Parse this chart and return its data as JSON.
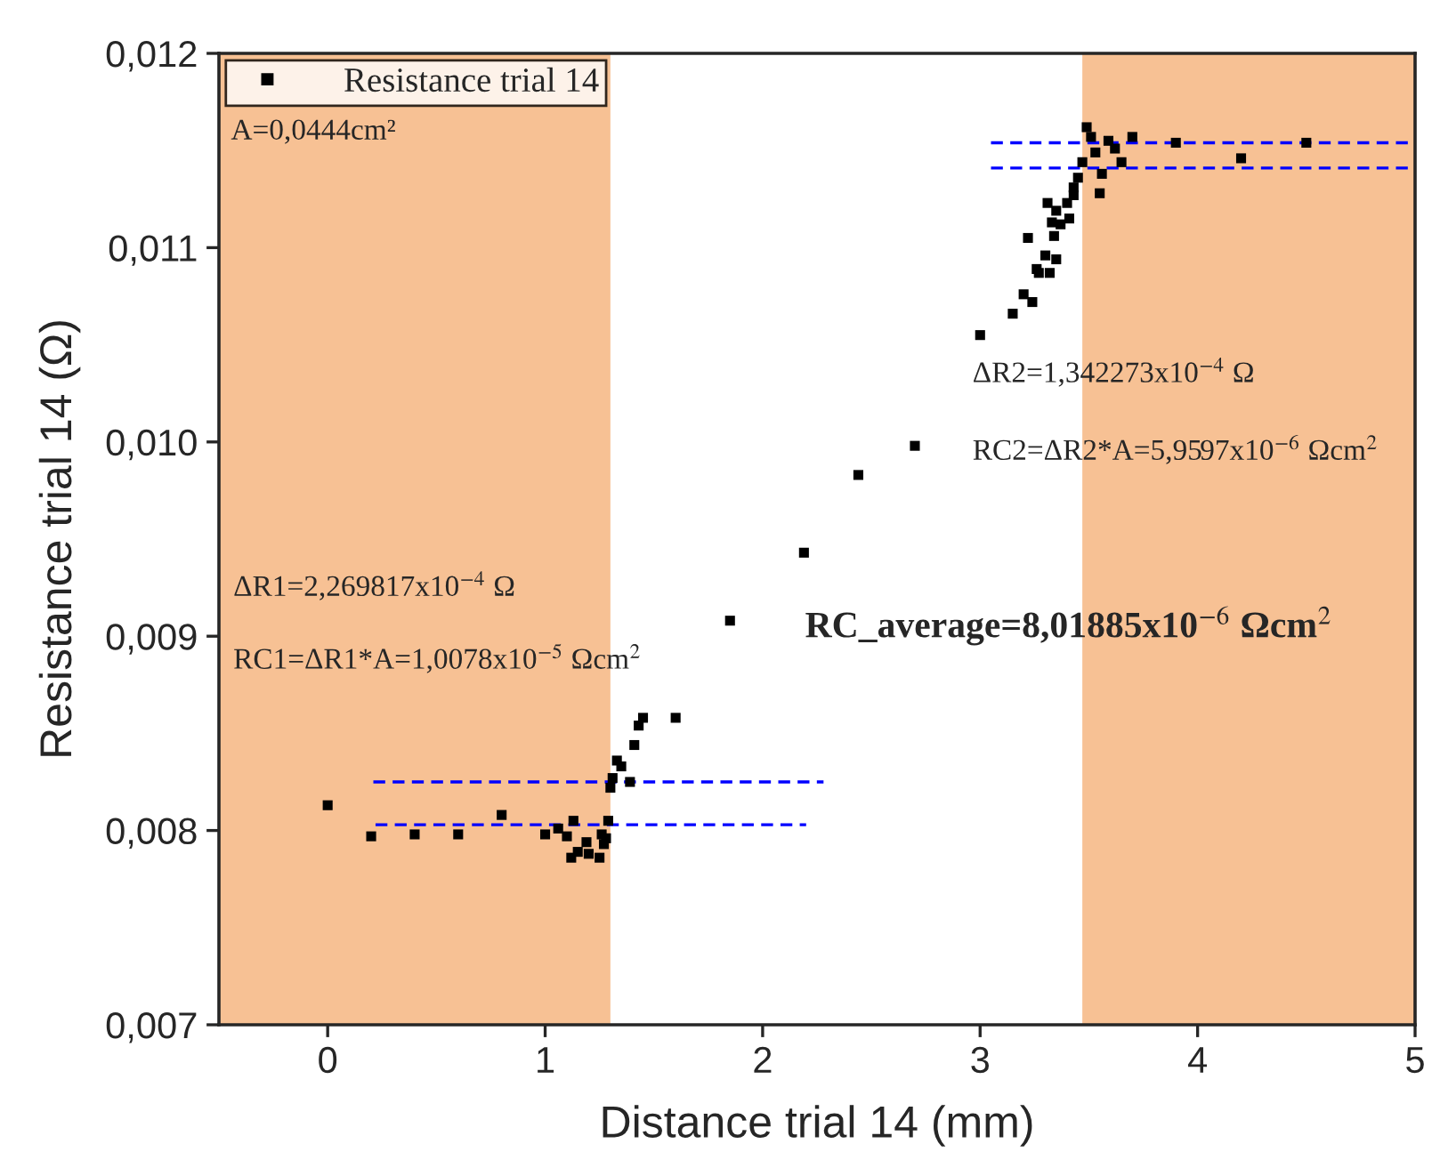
{
  "chart_data": {
    "type": "scatter",
    "xlabel": "Distance trial 14 (mm)",
    "ylabel": "Resistance trial 14 (Ω)",
    "xlim": [
      -0.5,
      5
    ],
    "xticks": [
      0,
      1,
      2,
      3,
      4,
      5
    ],
    "ylim": [
      0.007,
      0.012
    ],
    "yticks": [
      {
        "value": 0.007,
        "label": "0,007"
      },
      {
        "value": 0.008,
        "label": "0,008"
      },
      {
        "value": 0.009,
        "label": "0,009"
      },
      {
        "value": 0.01,
        "label": "0,010"
      },
      {
        "value": 0.011,
        "label": "0,011"
      },
      {
        "value": 0.012,
        "label": "0,012"
      }
    ],
    "grid": false,
    "legend": "top left",
    "series": [
      {
        "name": "Resistance trial 14",
        "marker": "square",
        "color": "#000000",
        "x": [
          0,
          0.2,
          0.4,
          0.6,
          0.8,
          1.0,
          1.06,
          1.13,
          1.1,
          1.19,
          1.15,
          1.12,
          1.2,
          1.25,
          1.26,
          1.28,
          1.27,
          1.29,
          1.3,
          1.31,
          1.33,
          1.35,
          1.39,
          1.41,
          1.43,
          1.45,
          1.6,
          1.85,
          2.19,
          2.44,
          2.7,
          3.0,
          3.15,
          3.2,
          3.24,
          3.22,
          3.26,
          3.27,
          3.32,
          3.3,
          3.35,
          3.34,
          3.33,
          3.31,
          3.35,
          3.37,
          3.41,
          3.4,
          3.43,
          3.43,
          3.45,
          3.47,
          3.49,
          3.51,
          3.53,
          3.55,
          3.56,
          3.59,
          3.62,
          3.65,
          3.7,
          3.9,
          4.2,
          4.5
        ],
        "values": [
          0.00813,
          0.00797,
          0.00798,
          0.00798,
          0.00808,
          0.00798,
          0.00801,
          0.00805,
          0.00797,
          0.00794,
          0.00789,
          0.00786,
          0.00788,
          0.00786,
          0.00798,
          0.00796,
          0.00793,
          0.00805,
          0.00822,
          0.00827,
          0.00836,
          0.00833,
          0.00825,
          0.00844,
          0.00854,
          0.00858,
          0.00858,
          0.00908,
          0.00943,
          0.00983,
          0.00998,
          0.01055,
          0.01066,
          0.01076,
          0.01072,
          0.01105,
          0.01089,
          0.01087,
          0.01087,
          0.01096,
          0.01094,
          0.01106,
          0.01113,
          0.01123,
          0.01119,
          0.01112,
          0.01115,
          0.01123,
          0.01127,
          0.01131,
          0.01136,
          0.01144,
          0.01162,
          0.01157,
          0.01149,
          0.01128,
          0.01138,
          0.01155,
          0.01151,
          0.01144,
          0.01157,
          0.01154,
          0.01146,
          0.01154
        ]
      },
      {
        "type": "line",
        "color": "#0000ff",
        "line_style": "dashed",
        "x": [
          0.21,
          2.28
        ],
        "values": [
          0.00825,
          0.00825
        ]
      },
      {
        "type": "line",
        "color": "#0000ff",
        "line_style": "dashed",
        "x": [
          0.22,
          2.2
        ],
        "values": [
          0.00803,
          0.00803
        ]
      },
      {
        "type": "line",
        "color": "#0000ff",
        "line_style": "dashed",
        "x": [
          3.05,
          5
        ],
        "values": [
          0.01154,
          0.01154
        ]
      },
      {
        "type": "line",
        "color": "#0000ff",
        "line_style": "dashed",
        "x": [
          3.05,
          5
        ],
        "values": [
          0.01141,
          0.01141
        ]
      }
    ],
    "bands": [
      {
        "axis": "x",
        "from": -0.5,
        "to": 1.3,
        "color": "#f7c194"
      },
      {
        "axis": "x",
        "from": 3.47,
        "to": 5,
        "color": "#f7c194"
      }
    ],
    "annotations": [
      "A=0,0444cm²",
      "ΔR1=2,269817x10$^{−4}$ Ω",
      "RC1=ΔR1*A=1,0078x10$^{−5}$ Ωcm$^{2}$",
      "ΔR2=1,342273x10$^{−4}$ Ω",
      "RC2=ΔR2*A=5,9597x10$^{−6}$ Ωcm$^{2}$",
      "RC_average=8,01885x10$^{−6}$ Ωcm$^{2}$"
    ]
  }
}
